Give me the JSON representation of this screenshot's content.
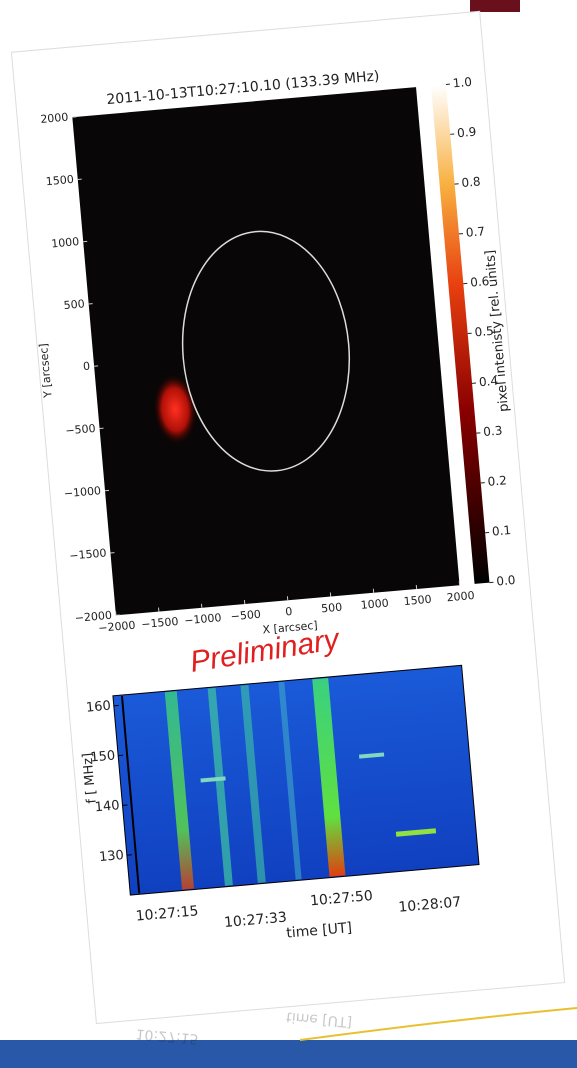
{
  "chart_data": [
    {
      "type": "heatmap",
      "title": "2011-10-13T10:27:10.10  (133.39 MHz)",
      "x_label": "X [arcsec]",
      "y_label": "Y [arcsec]",
      "xlim": [
        -2000,
        2000
      ],
      "ylim": [
        -2000,
        2000
      ],
      "xticks": [
        -2000,
        -1500,
        -1000,
        -500,
        0,
        500,
        1000,
        1500,
        2000
      ],
      "yticks": [
        -2000,
        -1500,
        -1000,
        -500,
        0,
        500,
        1000,
        1500,
        2000
      ],
      "colorbar_label": "pixel intenisty [rel. units]",
      "clim": [
        0,
        1
      ],
      "cticks": [
        {
          "value": 0,
          "label": "0.0"
        },
        0.1,
        0.2,
        0.3,
        0.4,
        0.5,
        0.6,
        0.7,
        0.8,
        0.9,
        {
          "value": 1,
          "label": "1.0"
        }
      ]
    },
    {
      "type": "spectrogram",
      "annotation": "Preliminary",
      "x_label": "time [UT]",
      "y_label": "f [ MHz]",
      "ylim": [
        122,
        162
      ],
      "yticks": [
        130,
        140,
        150,
        160
      ],
      "xticks": [
        "10:27:15",
        "10:27:33",
        "10:27:50",
        "10:28:07"
      ]
    }
  ]
}
